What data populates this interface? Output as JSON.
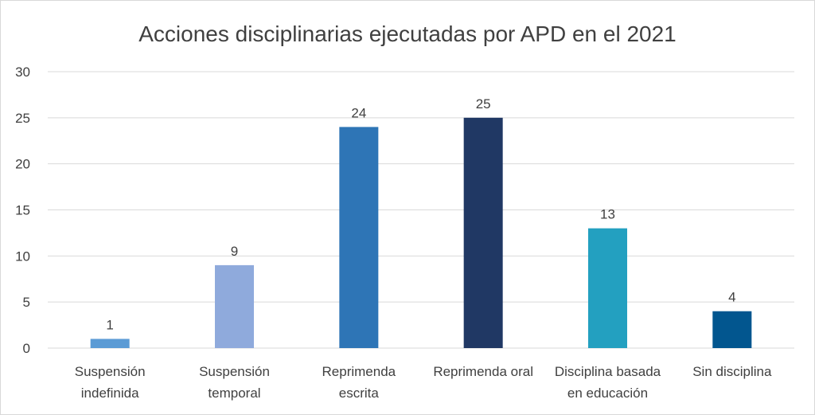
{
  "chart_data": {
    "type": "bar",
    "title": "Acciones disciplinarias ejecutadas por APD en el 2021",
    "categories": [
      [
        "Suspensión",
        "indefinida"
      ],
      [
        "Suspensión",
        "temporal"
      ],
      [
        "Reprimenda",
        "escrita"
      ],
      [
        "Reprimenda oral"
      ],
      [
        "Disciplina basada",
        "en educación"
      ],
      [
        "Sin disciplina"
      ]
    ],
    "values": [
      1,
      9,
      24,
      25,
      13,
      4
    ],
    "colors": [
      "#5B9BD5",
      "#8FAADC",
      "#2E75B6",
      "#203864",
      "#23A0C0",
      "#02568F"
    ],
    "ylim": [
      0,
      30
    ],
    "yticks": [
      0,
      5,
      10,
      15,
      20,
      25,
      30
    ],
    "grid": true,
    "data_labels": true,
    "legend": "none"
  }
}
